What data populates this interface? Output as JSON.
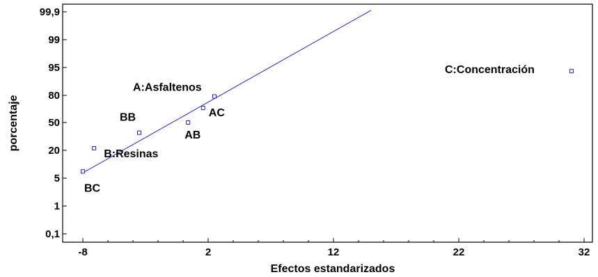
{
  "chart_data": {
    "type": "scatter",
    "title": "",
    "xlabel": "Efectos estandarizados",
    "ylabel": "porcentaje",
    "xlim": [
      -8.5,
      33.5
    ],
    "x_ticks": [
      -8,
      2,
      12,
      22,
      32
    ],
    "x_tick_labels": [
      "-8",
      "2",
      "12",
      "22",
      "32"
    ],
    "y_ticks": [
      0.1,
      1,
      5,
      20,
      50,
      80,
      95,
      99,
      99.9
    ],
    "y_tick_labels": [
      "0,1",
      "1",
      "5",
      "20",
      "50",
      "80",
      "95",
      "99",
      "99,9"
    ],
    "y_scale": "normal-probability",
    "grid": false,
    "legend": "none",
    "point_color": "#2323c8",
    "line_color": "#2323c8",
    "points": [
      {
        "label": "BC",
        "x": -8.0,
        "y": 7
      },
      {
        "label": "B:Resinas",
        "x": -7.1,
        "y": 21.4
      },
      {
        "label": "BB",
        "x": -3.5,
        "y": 35.7
      },
      {
        "label": "AB",
        "x": 0.4,
        "y": 50
      },
      {
        "label": "AC",
        "x": 1.6,
        "y": 64.3
      },
      {
        "label": "A:Asfaltenos",
        "x": 2.5,
        "y": 78.6
      },
      {
        "label": "C:Concentración",
        "x": 31.0,
        "y": 92.9
      }
    ],
    "fit_line": {
      "x": [
        -8.1,
        15.0
      ],
      "y": [
        6.3,
        99.95
      ]
    }
  }
}
